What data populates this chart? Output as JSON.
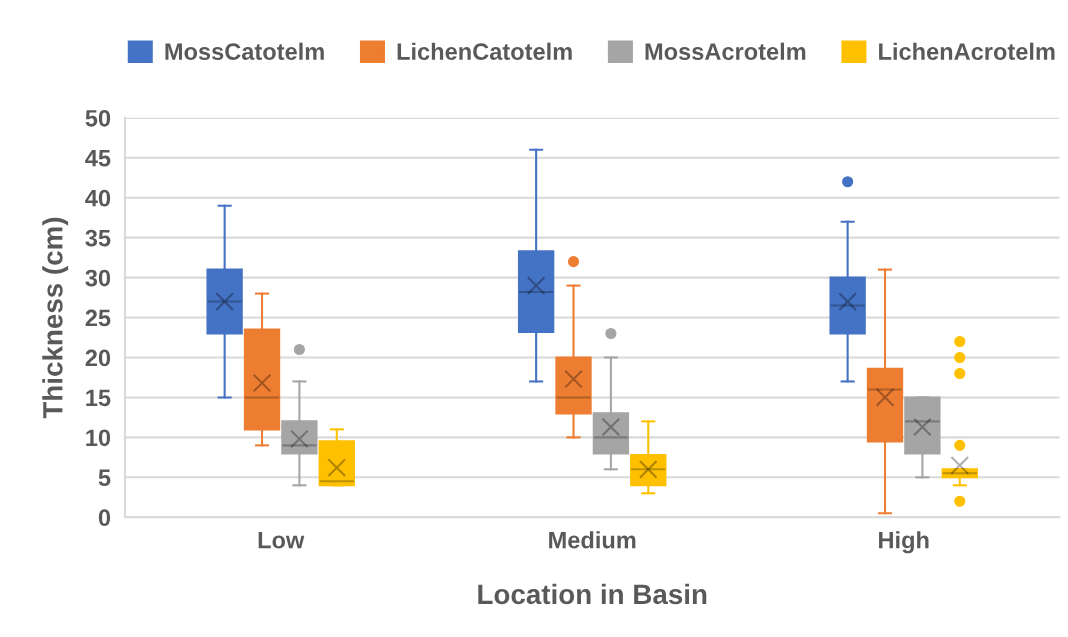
{
  "chart_data": {
    "type": "box",
    "xlabel": "Location in Basin",
    "ylabel": "Thickness (cm)",
    "categories": [
      "Low",
      "Medium",
      "High"
    ],
    "ylim": [
      0,
      50
    ],
    "yticks": [
      0,
      5,
      10,
      15,
      20,
      25,
      30,
      35,
      40,
      45,
      50
    ],
    "grid": "y",
    "legend": "top",
    "marker": "circle",
    "series": [
      {
        "name": "MossCatotelm",
        "color": "#4472c4",
        "boxes": [
          {
            "low": 15,
            "q1": 23,
            "median": 27,
            "q3": 31,
            "high": 39,
            "mean": 27
          },
          {
            "low": 17,
            "q1": 23.2,
            "median": 28.2,
            "q3": 33.3,
            "high": 46,
            "mean": 29
          },
          {
            "low": 17,
            "q1": 23,
            "median": 26.5,
            "q3": 30,
            "high": 37,
            "mean": 27,
            "outliers": [
              42
            ]
          }
        ]
      },
      {
        "name": "LichenCatotelm",
        "color": "#ed7d31",
        "boxes": [
          {
            "low": 9,
            "q1": 11,
            "median": 15,
            "q3": 23.5,
            "high": 28,
            "mean": 16.8
          },
          {
            "low": 10,
            "q1": 13,
            "median": 15,
            "q3": 20,
            "high": 29,
            "mean": 17.3,
            "outliers": [
              32
            ]
          },
          {
            "low": 0.5,
            "q1": 9.5,
            "median": 16,
            "q3": 18.6,
            "high": 31,
            "mean": 15
          }
        ]
      },
      {
        "name": "MossAcrotelm",
        "color": "#a5a5a5",
        "boxes": [
          {
            "low": 4,
            "q1": 8,
            "median": 9,
            "q3": 12,
            "high": 17,
            "mean": 9.8,
            "outliers": [
              21
            ]
          },
          {
            "low": 6,
            "q1": 8,
            "median": 10,
            "q3": 13,
            "high": 20,
            "mean": 11.3,
            "outliers": [
              23
            ]
          },
          {
            "low": 5,
            "q1": 8,
            "median": 12,
            "q3": 15,
            "high": 15,
            "mean": 11.3
          }
        ]
      },
      {
        "name": "LichenAcrotelm",
        "color": "#ffc000",
        "boxes": [
          {
            "low": 4,
            "q1": 4,
            "median": 4.5,
            "q3": 9.5,
            "high": 11,
            "mean": 6.2
          },
          {
            "low": 3,
            "q1": 4,
            "median": 6,
            "q3": 7.8,
            "high": 12,
            "mean": 6
          },
          {
            "low": 4,
            "q1": 5,
            "median": 5.5,
            "q3": 6,
            "high": 6,
            "mean": 6.5,
            "outliers": [
              2,
              9,
              18,
              20,
              22
            ]
          }
        ]
      }
    ]
  }
}
